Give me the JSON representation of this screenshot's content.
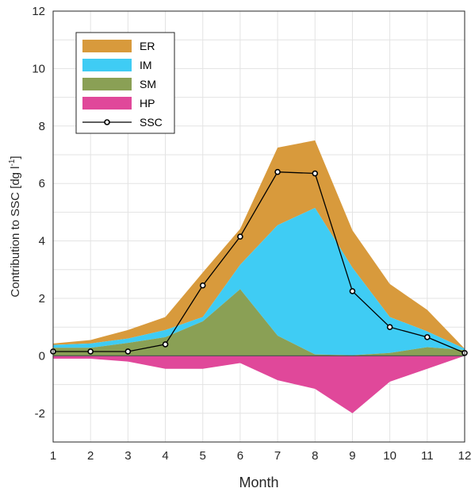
{
  "chart_data": {
    "type": "area",
    "xlabel": "Month",
    "ylabel": {
      "main": "Contribution to SSC [dg l",
      "sup": "-1",
      "close": "]"
    },
    "x": [
      1,
      2,
      3,
      4,
      5,
      6,
      7,
      8,
      9,
      10,
      11,
      12
    ],
    "xlim": [
      1,
      12
    ],
    "ylim": [
      -3,
      12
    ],
    "yticks": [
      -2,
      0,
      2,
      4,
      6,
      8,
      10,
      12
    ],
    "grid": true,
    "legend_position": "top-left",
    "series": [
      {
        "name": "ER",
        "kind": "stacked-area",
        "color": "#d89a3c",
        "values": [
          0.05,
          0.12,
          0.3,
          0.45,
          1.55,
          1.25,
          2.7,
          2.35,
          1.3,
          1.15,
          0.75,
          0.0
        ]
      },
      {
        "name": "IM",
        "kind": "stacked-area",
        "color": "#3fccf4",
        "values": [
          0.1,
          0.15,
          0.15,
          0.25,
          0.15,
          0.85,
          3.85,
          5.1,
          3.05,
          1.25,
          0.55,
          0.05
        ]
      },
      {
        "name": "SM",
        "kind": "stacked-area",
        "color": "#8aa055",
        "values": [
          0.28,
          0.28,
          0.45,
          0.65,
          1.2,
          2.32,
          0.7,
          0.05,
          0.02,
          0.1,
          0.3,
          0.2
        ]
      },
      {
        "name": "HP",
        "kind": "negative-area",
        "color": "#e0489a",
        "values": [
          -0.1,
          -0.1,
          -0.2,
          -0.45,
          -0.45,
          -0.25,
          -0.85,
          -1.15,
          -2.0,
          -0.9,
          -0.45,
          0.0
        ]
      },
      {
        "name": "SSC",
        "kind": "line",
        "color": "#000000",
        "values": [
          0.15,
          0.15,
          0.15,
          0.4,
          2.45,
          4.15,
          6.4,
          6.35,
          2.25,
          1.0,
          0.65,
          0.1
        ]
      }
    ],
    "legend": [
      {
        "label": "ER",
        "color": "#d89a3c"
      },
      {
        "label": "IM",
        "color": "#3fccf4"
      },
      {
        "label": "SM",
        "color": "#8aa055"
      },
      {
        "label": "HP",
        "color": "#e0489a"
      },
      {
        "label": "SSC",
        "color": "#000000"
      }
    ]
  }
}
